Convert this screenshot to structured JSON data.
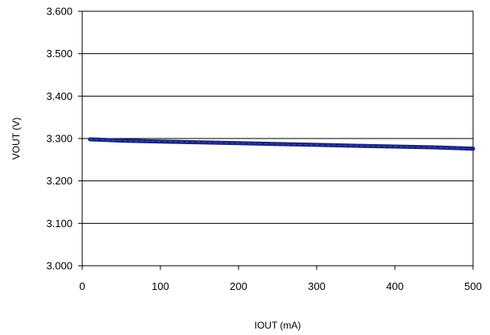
{
  "chart_data": {
    "type": "line",
    "title": "",
    "xlabel": "IOUT (mA)",
    "ylabel": "VOUT (V)",
    "xlim": [
      0,
      500
    ],
    "ylim": [
      3.0,
      3.6
    ],
    "x_ticks": [
      0,
      100,
      200,
      300,
      400,
      500
    ],
    "x_tick_labels": [
      "0",
      "100",
      "200",
      "300",
      "400",
      "500"
    ],
    "y_ticks": [
      3.0,
      3.1,
      3.2,
      3.3,
      3.4,
      3.5,
      3.6
    ],
    "y_tick_labels": [
      "3.000",
      "3.100",
      "3.200",
      "3.300",
      "3.400",
      "3.500",
      "3.600"
    ],
    "grid": {
      "horizontal": true,
      "vertical": false
    },
    "legend": "none",
    "series": [
      {
        "color": "#1a237e",
        "x": [
          10,
          50,
          100,
          150,
          200,
          250,
          300,
          350,
          400,
          450,
          500
        ],
        "y": [
          3.298,
          3.295,
          3.293,
          3.291,
          3.289,
          3.287,
          3.285,
          3.283,
          3.281,
          3.279,
          3.276
        ]
      }
    ]
  }
}
